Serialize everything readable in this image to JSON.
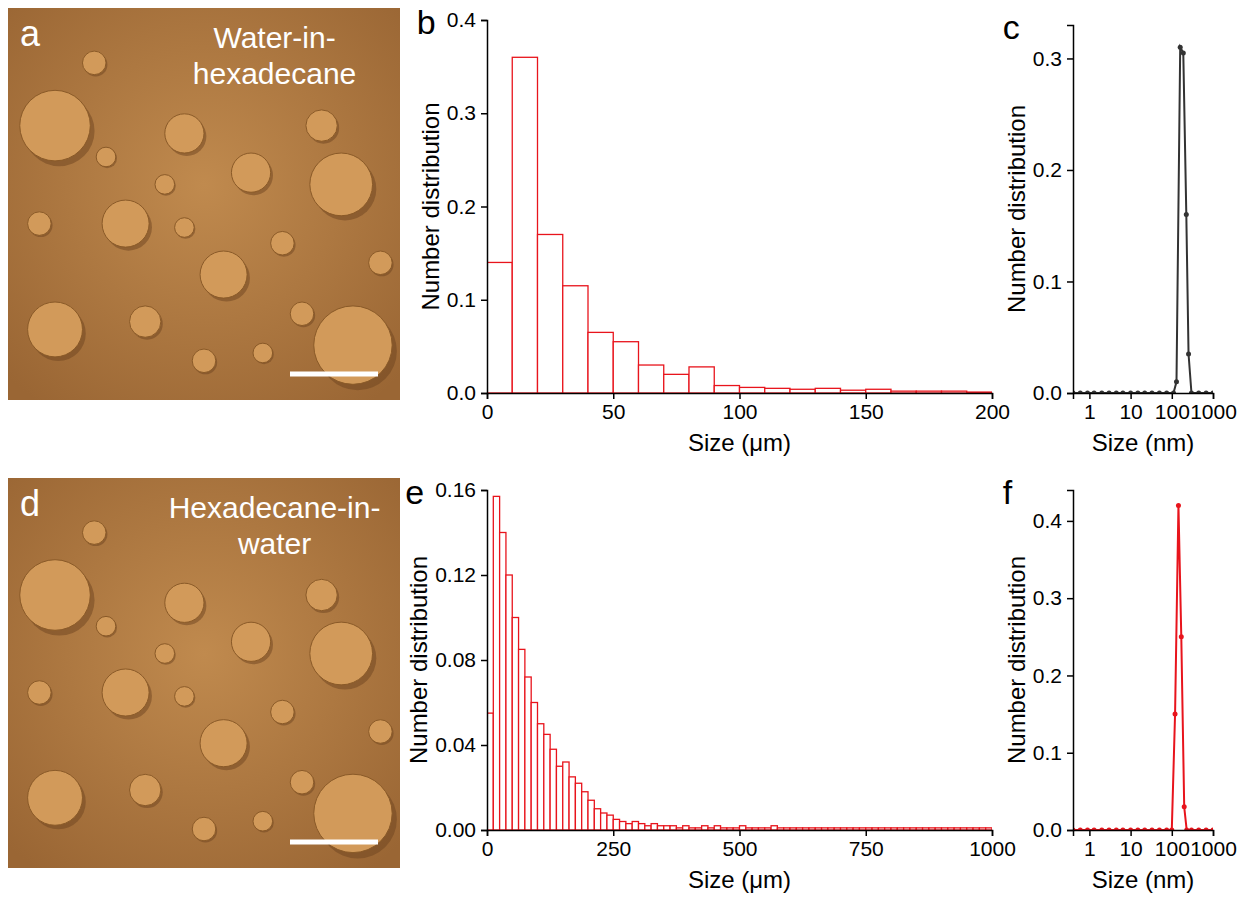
{
  "chart_data": [
    {
      "type": "image",
      "panel_label": "a",
      "annotation": "Water-in-hexadecane"
    },
    {
      "type": "histogram",
      "panel_label": "b",
      "xlabel": "Size (μm)",
      "ylabel": "Number distribution",
      "bins": [
        0,
        10,
        20,
        30,
        40,
        50,
        60,
        70,
        80,
        90,
        100,
        110,
        120,
        130,
        140,
        150,
        160,
        170,
        180,
        190,
        200
      ],
      "values": [
        0.14,
        0.36,
        0.17,
        0.115,
        0.065,
        0.055,
        0.03,
        0.02,
        0.028,
        0.008,
        0.006,
        0.005,
        0.004,
        0.005,
        0.003,
        0.004,
        0.002,
        0.002,
        0.002,
        0.001
      ],
      "color": "#e8141c",
      "xlim": [
        0,
        200
      ],
      "xticks": [
        0,
        50,
        100,
        150,
        200
      ],
      "ylim": [
        0,
        0.4
      ],
      "yticks": [
        {
          "value": 0,
          "label": "0.0"
        },
        0.1,
        0.2,
        0.3,
        0.4
      ]
    },
    {
      "type": "line",
      "panel_label": "c",
      "xlabel": "Size (nm)",
      "ylabel": "Number distribution",
      "x": [
        0.4,
        0.6,
        0.9,
        1.3,
        2,
        3,
        4.5,
        6.5,
        10,
        15,
        22,
        33,
        50,
        75,
        110,
        130,
        160,
        190,
        225,
        255,
        300,
        450,
        680,
        1000
      ],
      "values": [
        0,
        0,
        0,
        0,
        0,
        0,
        0,
        0,
        0,
        0,
        0,
        0,
        0,
        0,
        0,
        0.01,
        0.31,
        0.305,
        0.16,
        0.035,
        0,
        0,
        0,
        0
      ],
      "color": "#333333",
      "marker": "circle",
      "log": "x",
      "xlim": [
        0.4,
        1000
      ],
      "xticks": [
        1,
        10,
        100,
        1000
      ],
      "ylim": [
        0,
        0.33
      ],
      "yticks": [
        {
          "value": 0,
          "label": "0.0"
        },
        0.1,
        0.2,
        0.3
      ]
    },
    {
      "type": "image",
      "panel_label": "d",
      "annotation": "Hexadecane-in-water"
    },
    {
      "type": "histogram",
      "panel_label": "e",
      "xlabel": "Size (μm)",
      "ylabel": "Number distribution",
      "bins": [
        0,
        12.5,
        25,
        37.5,
        50,
        62.5,
        75,
        87.5,
        100,
        112.5,
        125,
        137.5,
        150,
        162.5,
        175,
        187.5,
        200,
        212.5,
        225,
        237.5,
        250,
        262.5,
        275,
        287.5,
        300,
        312.5,
        325,
        337.5,
        350,
        362.5,
        375,
        387.5,
        400,
        412.5,
        425,
        437.5,
        450,
        462.5,
        475,
        487.5,
        500,
        512.5,
        525,
        537.5,
        550,
        562.5,
        575,
        587.5,
        600,
        612.5,
        625,
        637.5,
        650,
        662.5,
        675,
        687.5,
        700,
        712.5,
        725,
        737.5,
        750,
        762.5,
        775,
        787.5,
        800,
        812.5,
        825,
        837.5,
        850,
        862.5,
        875,
        887.5,
        900,
        912.5,
        925,
        937.5,
        950,
        962.5,
        975,
        987.5,
        1000
      ],
      "values": [
        0.055,
        0.157,
        0.14,
        0.12,
        0.1,
        0.085,
        0.072,
        0.06,
        0.05,
        0.045,
        0.038,
        0.03,
        0.032,
        0.025,
        0.022,
        0.018,
        0.014,
        0.01,
        0.008,
        0.007,
        0.005,
        0.004,
        0.003,
        0.004,
        0.003,
        0.002,
        0.003,
        0.002,
        0.002,
        0.002,
        0.001,
        0.002,
        0.001,
        0.001,
        0.002,
        0.001,
        0.002,
        0.001,
        0.001,
        0.001,
        0.002,
        0.001,
        0.001,
        0.001,
        0.001,
        0.002,
        0.001,
        0.001,
        0.001,
        0.001,
        0.001,
        0.001,
        0.001,
        0.001,
        0.001,
        0.001,
        0.001,
        0.001,
        0.001,
        0.001,
        0.001,
        0.001,
        0.001,
        0.001,
        0.001,
        0.001,
        0.001,
        0.001,
        0.001,
        0.001,
        0.001,
        0.001,
        0.001,
        0.001,
        0.001,
        0.001,
        0.001,
        0.001,
        0.001,
        0.001
      ],
      "color": "#e8141c",
      "xlim": [
        0,
        1000
      ],
      "xticks": [
        0,
        250,
        500,
        750,
        1000
      ],
      "ylim": [
        0,
        0.16
      ],
      "yticks": [
        {
          "value": 0,
          "label": "0.00"
        },
        0.04,
        0.08,
        0.12,
        0.16
      ]
    },
    {
      "type": "line",
      "panel_label": "f",
      "xlabel": "Size (nm)",
      "ylabel": "Number distribution",
      "x": [
        0.4,
        0.6,
        0.9,
        1.3,
        2,
        3,
        4.5,
        6.5,
        10,
        15,
        22,
        33,
        50,
        75,
        100,
        120,
        145,
        170,
        200,
        230,
        300,
        450,
        680,
        1000
      ],
      "values": [
        0,
        0,
        0,
        0,
        0,
        0,
        0,
        0,
        0,
        0,
        0,
        0,
        0,
        0,
        0,
        0.15,
        0.42,
        0.25,
        0.03,
        0,
        0,
        0,
        0,
        0
      ],
      "color": "#e8141c",
      "marker": "circle",
      "log": "x",
      "xlim": [
        0.4,
        1000
      ],
      "xticks": [
        1,
        10,
        100,
        1000
      ],
      "ylim": [
        0,
        0.44
      ],
      "yticks": [
        {
          "value": 0,
          "label": "0.0"
        },
        0.1,
        0.2,
        0.3,
        0.4
      ]
    }
  ]
}
